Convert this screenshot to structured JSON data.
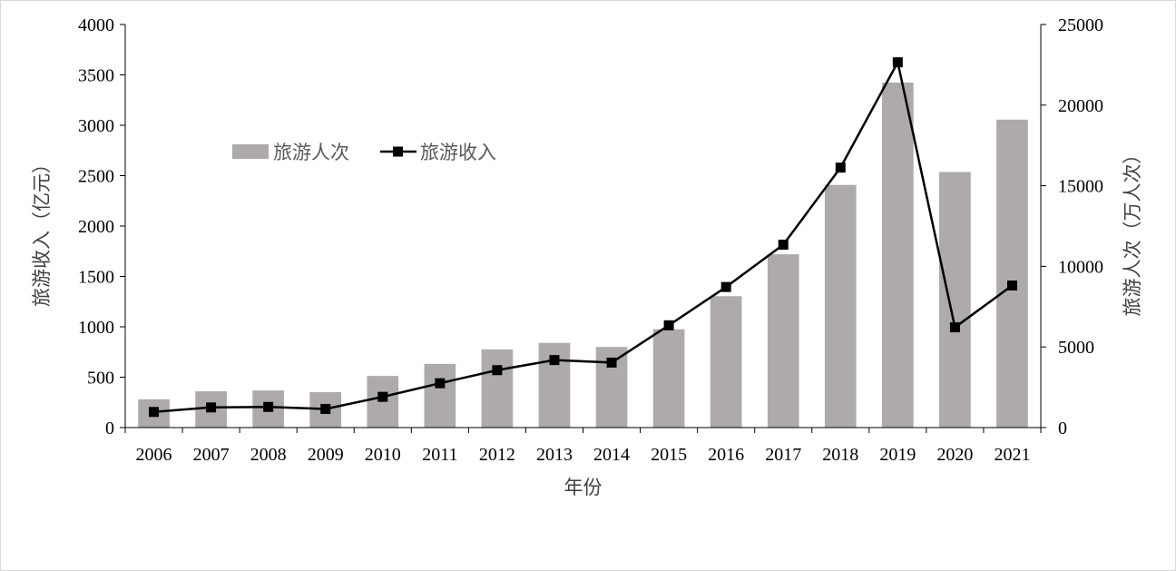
{
  "chart_data": {
    "type": "bar+line",
    "title": "",
    "categories": [
      "2006",
      "2007",
      "2008",
      "2009",
      "2010",
      "2011",
      "2012",
      "2013",
      "2014",
      "2015",
      "2016",
      "2017",
      "2018",
      "2019",
      "2020",
      "2021"
    ],
    "series": [
      {
        "name": "旅游人次",
        "type": "bar",
        "axis": "right",
        "color": "#aeaaaa",
        "values": [
          1750,
          2250,
          2300,
          2200,
          3200,
          3950,
          4850,
          5250,
          5000,
          6100,
          8150,
          10750,
          15050,
          21400,
          15850,
          19100
        ]
      },
      {
        "name": "旅游收入",
        "type": "line",
        "axis": "left",
        "color": "#000000",
        "values": [
          155,
          200,
          205,
          185,
          305,
          440,
          570,
          670,
          645,
          1015,
          1395,
          1815,
          2580,
          3625,
          995,
          1410
        ]
      }
    ],
    "xlabel": "年份",
    "ylabel_left": "旅游收入（亿元）",
    "ylabel_right": "旅游人次（万人次）",
    "ylim_left": [
      0,
      4000
    ],
    "ylim_right": [
      0,
      25000
    ],
    "yticks_left": [
      "0",
      "500",
      "1000",
      "1500",
      "2000",
      "2500",
      "3000",
      "3500",
      "4000"
    ],
    "yticks_right": [
      "0",
      "5000",
      "10000",
      "15000",
      "20000",
      "25000"
    ],
    "grid": false,
    "legend": {
      "placement": "upper-left",
      "items": [
        "旅游人次",
        "旅游收入"
      ]
    }
  }
}
